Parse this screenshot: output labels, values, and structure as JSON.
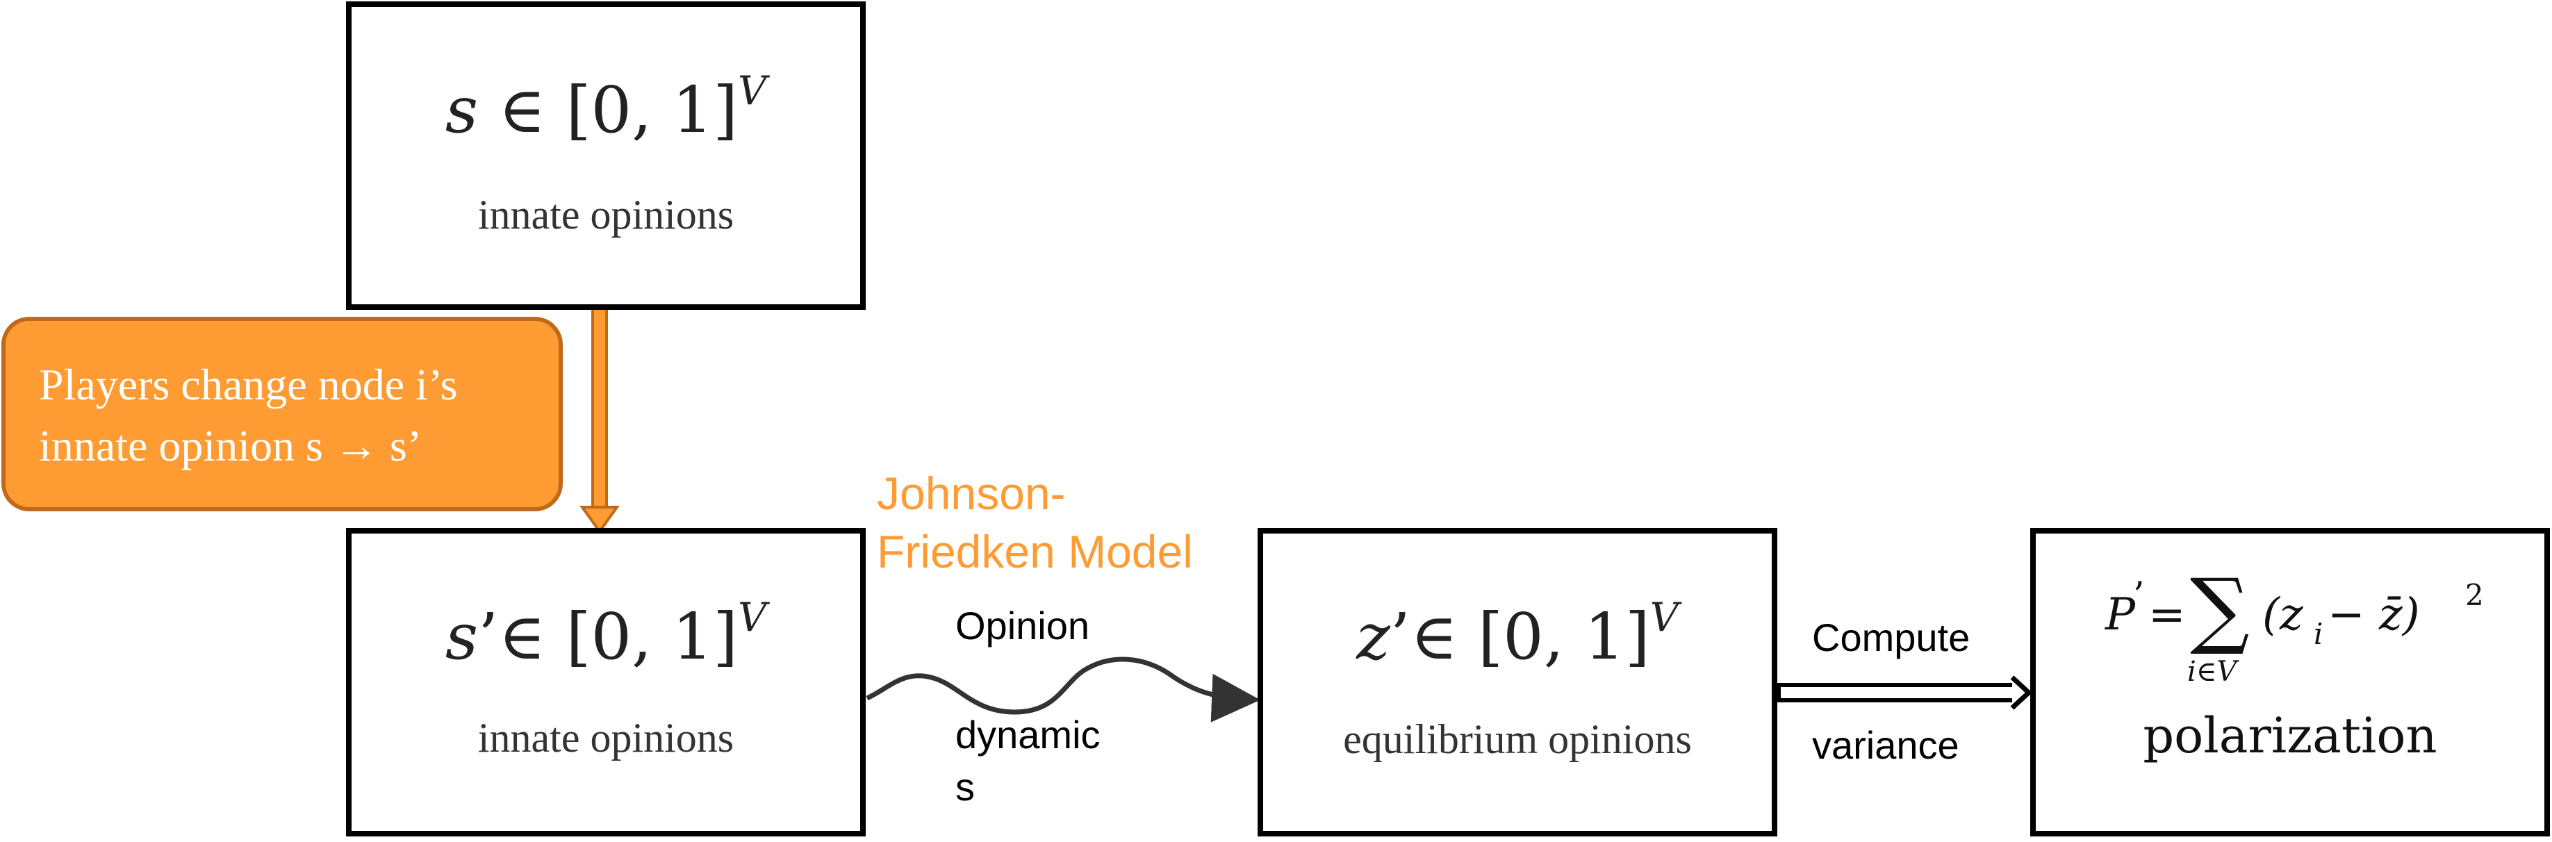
{
  "nodes": {
    "innate": {
      "math_var": "s",
      "math_set": "∈ [0, 1]",
      "math_sup": "V",
      "label": "innate opinions"
    },
    "innate_prime": {
      "math_var": "s",
      "math_prime": "’",
      "math_set": "∈ [0, 1]",
      "math_sup": "V",
      "label": "innate opinions"
    },
    "equilibrium": {
      "math_var": "z",
      "math_prime": "’",
      "math_set": "∈ [0, 1]",
      "math_sup": "V",
      "label": "equilibrium opinions"
    },
    "polarization": {
      "math_lhs": "P",
      "math_prime": "’",
      "math_eq": "=",
      "math_sum": "∑",
      "math_sub": "i∈V",
      "math_term": "(z",
      "math_term_sub": "i",
      "math_term_rest": " − z̄)",
      "math_sq": "2",
      "label": "polarization"
    }
  },
  "action_box": {
    "line1": "Players change node i’s",
    "line2": "innate opinion  s → s’"
  },
  "model_label": {
    "line1": "Johnson-",
    "line2": "Friedken Model"
  },
  "edge_labels": {
    "opinion": "Opinion",
    "dynamic": "dynamic",
    "dynamic_s": "s",
    "compute": "Compute",
    "variance": "variance"
  },
  "colors": {
    "accent": "#FF9B33",
    "accent_border": "#C06A19",
    "stroke": "#000000",
    "curve": "#333333"
  }
}
